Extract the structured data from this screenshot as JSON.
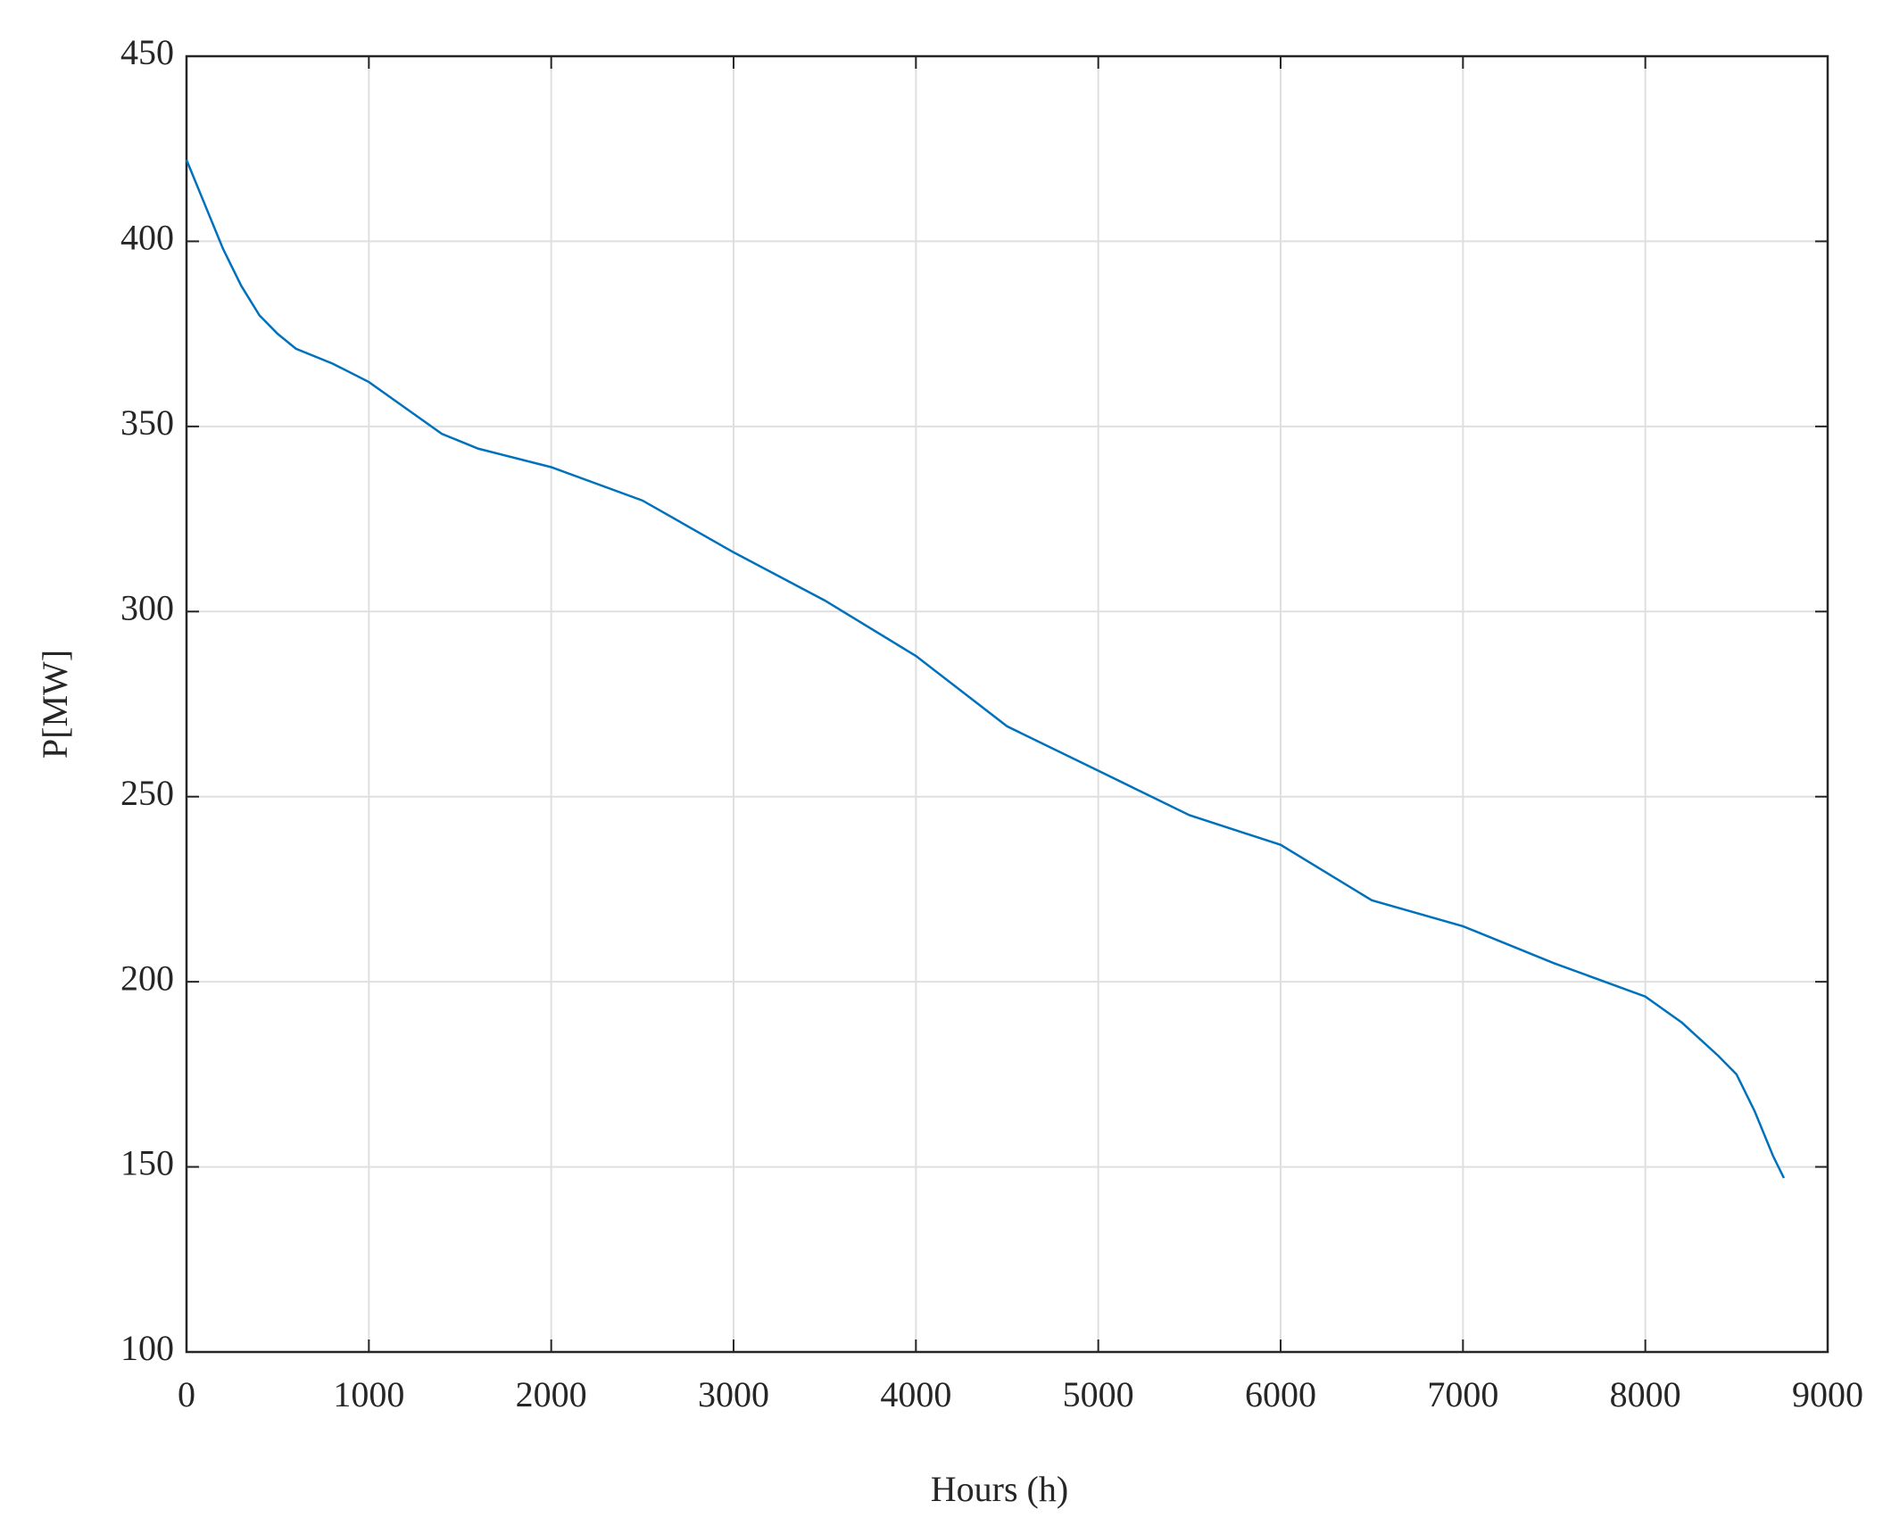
{
  "chart_data": {
    "type": "line",
    "xlabel": "Hours (h)",
    "ylabel": "P[MW]",
    "x": [
      0,
      100,
      200,
      300,
      400,
      500,
      600,
      800,
      1000,
      1200,
      1400,
      1600,
      2000,
      2500,
      3000,
      3500,
      4000,
      4500,
      5000,
      5500,
      6000,
      6500,
      7000,
      7500,
      8000,
      8200,
      8400,
      8500,
      8600,
      8700,
      8760
    ],
    "values": [
      422,
      410,
      398,
      388,
      380,
      375,
      371,
      367,
      362,
      355,
      348,
      344,
      339,
      330,
      316,
      303,
      288,
      269,
      257,
      245,
      237,
      222,
      215,
      205,
      196,
      189,
      180,
      175,
      165,
      153,
      147
    ],
    "color": "#0072bd",
    "xlim": [
      0,
      9000
    ],
    "xticks": [
      0,
      1000,
      2000,
      3000,
      4000,
      5000,
      6000,
      7000,
      8000,
      9000
    ],
    "ylim": [
      100,
      450
    ],
    "yticks": [
      100,
      150,
      200,
      250,
      300,
      350,
      400,
      450
    ],
    "grid": true
  }
}
